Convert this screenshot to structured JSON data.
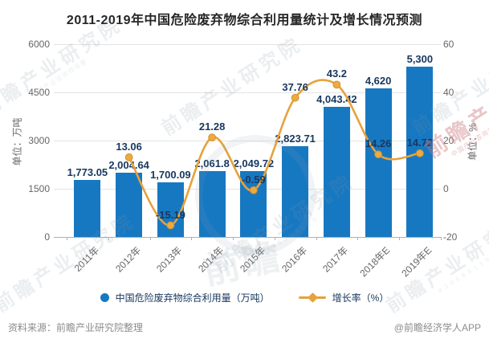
{
  "title": "2011-2019年中国危险废弃物综合利用量统计及增长情况预测",
  "chart_data": {
    "type": "bar+line combo",
    "categories": [
      "2011年",
      "2012年",
      "2013年",
      "2014年",
      "2015年",
      "2016年",
      "2017年",
      "2018年E",
      "2019年E"
    ],
    "series": [
      {
        "name": "中国危险废弃物综合利用量（万吨）",
        "type": "bar",
        "axis": "left",
        "color": "#1778C2",
        "values": [
          1773.05,
          2004.64,
          1700.09,
          2061.8,
          2049.72,
          2823.71,
          4043.42,
          4620,
          5300
        ],
        "labels": [
          "1,773.05",
          "2,004.64",
          "1,700.09",
          "2,061.8",
          "2,049.72",
          "2,823.71",
          "4,043.42",
          "4,620",
          "5,300"
        ]
      },
      {
        "name": "增长率（%）",
        "type": "line",
        "axis": "right",
        "color": "#E6A23C",
        "values": [
          null,
          13.06,
          -15.19,
          21.28,
          -0.59,
          37.76,
          43.2,
          14.26,
          14.72
        ],
        "labels": [
          null,
          "13.06",
          "-15.19",
          "21.28",
          "-0.59",
          "37.76",
          "43.2",
          "14.26",
          "14.72"
        ]
      }
    ],
    "left_axis": {
      "title": "单位：万吨",
      "min": 0,
      "max": 6000,
      "ticks": [
        "6000",
        "4500",
        "3000",
        "1500",
        "0"
      ]
    },
    "right_axis": {
      "title": "单位：%",
      "min": -20,
      "max": 60,
      "ticks": [
        "60",
        "40",
        "20",
        "0",
        "-20"
      ]
    },
    "grid": "horizontal",
    "legend_position": "bottom"
  },
  "footer": {
    "source": "资料来源：前瞻产业研究院整理",
    "credit": "@前瞻经济学人APP"
  },
  "watermark": {
    "brand": "前瞻产业研究院",
    "tagline": "中国产业咨询领导者",
    "digits": "8 3 9 5 8 6 1 3 9",
    "logo_text": "前瞻"
  }
}
